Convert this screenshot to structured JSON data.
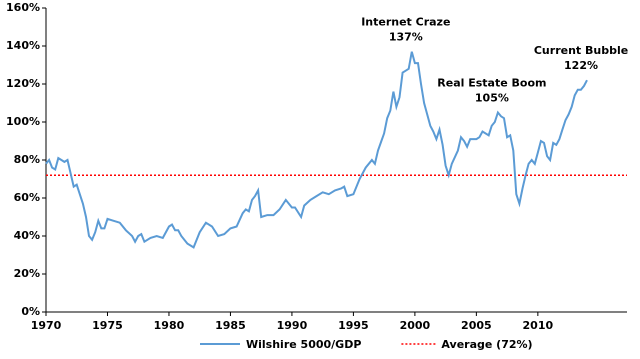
{
  "chart_data": {
    "type": "line",
    "xlim": [
      1970,
      2017.25
    ],
    "xticks": [
      1970,
      1975,
      1980,
      1985,
      1990,
      1995,
      2000,
      2005,
      2010
    ],
    "ylim": [
      0,
      160
    ],
    "yticks": [
      {
        "value": 0,
        "label": "0%"
      },
      {
        "value": 20,
        "label": "20%"
      },
      {
        "value": 40,
        "label": "40%"
      },
      {
        "value": 60,
        "label": "60%"
      },
      {
        "value": 80,
        "label": "80%"
      },
      {
        "value": 100,
        "label": "100%"
      },
      {
        "value": 120,
        "label": "120%"
      },
      {
        "value": 140,
        "label": "140%"
      },
      {
        "value": 160,
        "label": "160%"
      }
    ],
    "grid": false,
    "legend": "bottom",
    "x": [
      1970,
      1970.25,
      1970.5,
      1970.75,
      1971,
      1971.25,
      1971.5,
      1971.75,
      1972,
      1972.25,
      1972.5,
      1972.75,
      1973,
      1973.25,
      1973.5,
      1973.75,
      1974,
      1974.25,
      1974.5,
      1974.75,
      1975,
      1975.5,
      1976,
      1976.5,
      1977,
      1977.25,
      1977.5,
      1977.75,
      1978,
      1978.5,
      1979,
      1979.5,
      1980,
      1980.25,
      1980.5,
      1980.75,
      1981,
      1981.5,
      1982,
      1982.5,
      1983,
      1983.5,
      1984,
      1984.5,
      1985,
      1985.5,
      1986,
      1986.25,
      1986.5,
      1986.75,
      1987,
      1987.25,
      1987.5,
      1988,
      1988.5,
      1989,
      1989.5,
      1990,
      1990.25,
      1990.75,
      1991,
      1991.5,
      1992,
      1992.5,
      1993,
      1993.5,
      1994,
      1994.25,
      1994.5,
      1995,
      1995.5,
      1996,
      1996.5,
      1996.75,
      1997,
      1997.5,
      1997.75,
      1998,
      1998.25,
      1998.5,
      1998.75,
      1999,
      1999.25,
      1999.5,
      1999.75,
      2000,
      2000.25,
      2000.5,
      2000.75,
      2001,
      2001.25,
      2001.5,
      2001.75,
      2002,
      2002.25,
      2002.5,
      2002.75,
      2003,
      2003.5,
      2003.75,
      2004,
      2004.25,
      2004.5,
      2005,
      2005.25,
      2005.5,
      2006,
      2006.25,
      2006.5,
      2006.75,
      2007,
      2007.25,
      2007.5,
      2007.75,
      2008,
      2008.25,
      2008.5,
      2008.75,
      2009,
      2009.25,
      2009.5,
      2009.75,
      2010,
      2010.25,
      2010.5,
      2010.75,
      2011,
      2011.25,
      2011.5,
      2011.75,
      2012,
      2012.25,
      2012.5,
      2012.75,
      2013,
      2013.25,
      2013.5,
      2013.75,
      2014
    ],
    "series": [
      {
        "name": "Wilshire 5000/GDP",
        "color": "#5b9bd5",
        "values": [
          78,
          80,
          76,
          75,
          81,
          80,
          79,
          80,
          73,
          66,
          67,
          62,
          57,
          50,
          40,
          38,
          42,
          48,
          44,
          44,
          49,
          48,
          47,
          43,
          40,
          37,
          40,
          41,
          37,
          39,
          40,
          39,
          45,
          46,
          43,
          43,
          40,
          36,
          34,
          42,
          47,
          45,
          40,
          41,
          44,
          45,
          52,
          54,
          53,
          59,
          61,
          64,
          50,
          51,
          51,
          54,
          59,
          55,
          55,
          50,
          56,
          59,
          61,
          63,
          62,
          64,
          65,
          66,
          61,
          62,
          70,
          76,
          80,
          78,
          85,
          94,
          102,
          106,
          116,
          108,
          113,
          126,
          127,
          128,
          137,
          131,
          131,
          120,
          110,
          104,
          98,
          95,
          91,
          96,
          88,
          77,
          72,
          78,
          85,
          92,
          90,
          87,
          91,
          91,
          92,
          95,
          93,
          98,
          100,
          105,
          103,
          102,
          92,
          93,
          85,
          62,
          57,
          65,
          72,
          78,
          80,
          78,
          84,
          90,
          89,
          82,
          80,
          89,
          88,
          91,
          96,
          101,
          104,
          108,
          114,
          117,
          117,
          119,
          122
        ]
      }
    ],
    "reference_lines": [
      {
        "name": "Average (72%)",
        "value": 72,
        "color": "#ff0000"
      }
    ],
    "annotations": [
      {
        "text": "Internet Craze",
        "label": "137%",
        "x": 1999.75,
        "value": 137
      },
      {
        "text": "Real Estate Boom",
        "label": "105%",
        "x": 2006.75,
        "value": 105
      },
      {
        "text": "Current Bubble",
        "label": "122%",
        "x": 2014,
        "value": 122
      }
    ]
  }
}
